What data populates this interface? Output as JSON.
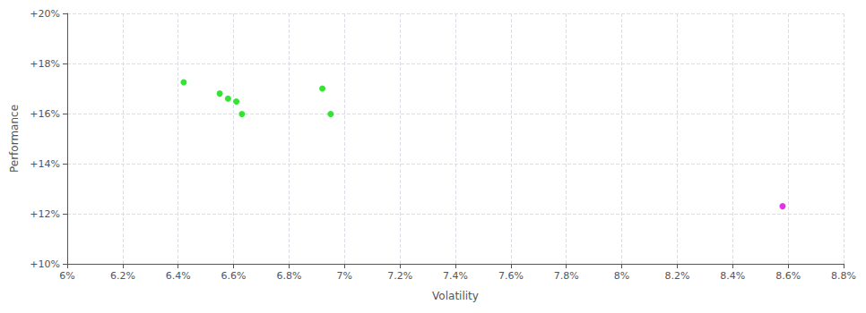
{
  "chart_data": {
    "type": "scatter",
    "xlabel": "Volatility",
    "ylabel": "Performance",
    "xlim": [
      0.06,
      0.088
    ],
    "ylim": [
      0.1,
      0.2
    ],
    "xticks": [
      {
        "value": 0.06,
        "label": "6%"
      },
      {
        "value": 0.062,
        "label": "6.2%"
      },
      {
        "value": 0.064,
        "label": "6.4%"
      },
      {
        "value": 0.066,
        "label": "6.6%"
      },
      {
        "value": 0.068,
        "label": "6.8%"
      },
      {
        "value": 0.07,
        "label": "7%"
      },
      {
        "value": 0.072,
        "label": "7.2%"
      },
      {
        "value": 0.074,
        "label": "7.4%"
      },
      {
        "value": 0.076,
        "label": "7.6%"
      },
      {
        "value": 0.078,
        "label": "7.8%"
      },
      {
        "value": 0.08,
        "label": "8%"
      },
      {
        "value": 0.082,
        "label": "8.2%"
      },
      {
        "value": 0.084,
        "label": "8.4%"
      },
      {
        "value": 0.086,
        "label": "8.6%"
      },
      {
        "value": 0.088,
        "label": "8.8%"
      }
    ],
    "yticks": [
      {
        "value": 0.1,
        "label": "+10%"
      },
      {
        "value": 0.12,
        "label": "+12%"
      },
      {
        "value": 0.14,
        "label": "+14%"
      },
      {
        "value": 0.16,
        "label": "+16%"
      },
      {
        "value": 0.18,
        "label": "+18%"
      },
      {
        "value": 0.2,
        "label": "+20%"
      }
    ],
    "grid": true,
    "series": [
      {
        "color": "#00dd00",
        "x": [
          0.0642,
          0.0655,
          0.0658,
          0.0661,
          0.0663,
          0.0692,
          0.0695
        ],
        "values": [
          0.1725,
          0.168,
          0.166,
          0.1648,
          0.1598,
          0.17,
          0.1598
        ]
      },
      {
        "color": "#dd00dd",
        "x": [
          0.0858
        ],
        "values": [
          0.123
        ]
      }
    ]
  }
}
